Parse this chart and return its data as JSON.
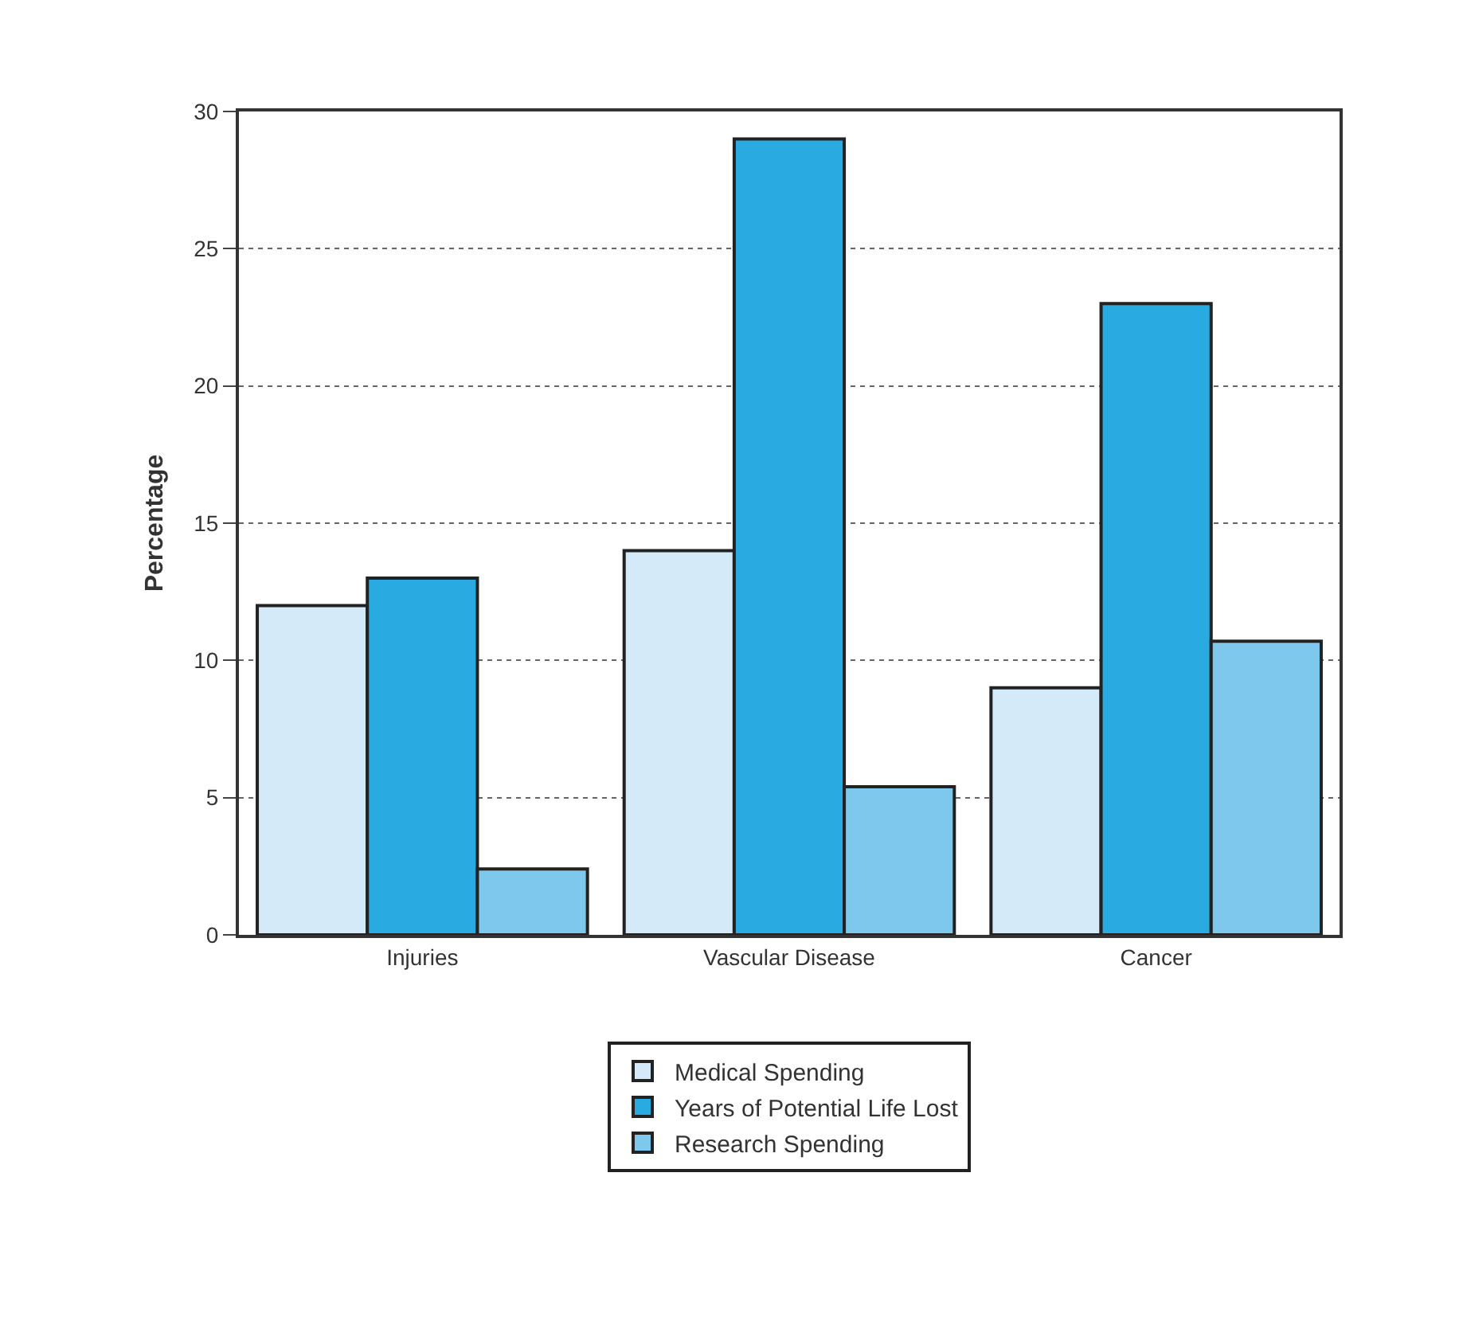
{
  "chart_data": {
    "type": "bar",
    "ylabel": "Percentage",
    "categories": [
      "Injuries",
      "Vascular Disease",
      "Cancer"
    ],
    "series": [
      {
        "name": "Medical Spending",
        "color": "#d4eaf8",
        "values": [
          12,
          14,
          9
        ]
      },
      {
        "name": "Years of Potential Life Lost",
        "color": "#29abe2",
        "values": [
          13,
          29,
          23
        ]
      },
      {
        "name": "Research Spending",
        "color": "#7ec8ee",
        "values": [
          2.4,
          5.4,
          10.7
        ]
      }
    ],
    "ylim": [
      0,
      30
    ],
    "yticks": [
      0,
      5,
      10,
      15,
      20,
      25,
      30
    ],
    "grid": "y",
    "legend": "bottom"
  }
}
